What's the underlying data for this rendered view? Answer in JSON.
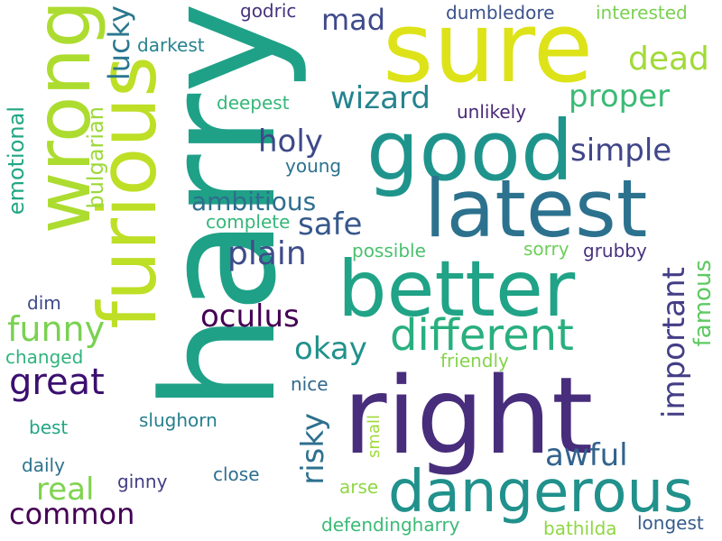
{
  "words": [
    {
      "text": "harry",
      "color": "#1fa187",
      "vertical": true
    },
    {
      "text": "sure",
      "color": "#dde318",
      "vertical": false
    },
    {
      "text": "right",
      "color": "#472d7b",
      "vertical": false
    },
    {
      "text": "furious",
      "color": "#bddf26",
      "vertical": true
    },
    {
      "text": "wrong",
      "color": "#addc30",
      "vertical": true
    },
    {
      "text": "good",
      "color": "#1f948c",
      "vertical": false
    },
    {
      "text": "latest",
      "color": "#2c728e",
      "vertical": false
    },
    {
      "text": "better",
      "color": "#20a386",
      "vertical": false
    },
    {
      "text": "dangerous",
      "color": "#21918c",
      "vertical": false
    },
    {
      "text": "different",
      "color": "#29af7f",
      "vertical": false
    },
    {
      "text": "lucky",
      "color": "#2a788e",
      "vertical": true
    },
    {
      "text": "mad",
      "color": "#3e4a89",
      "vertical": false
    },
    {
      "text": "dead",
      "color": "#a2da37",
      "vertical": false
    },
    {
      "text": "wizard",
      "color": "#25848e",
      "vertical": false
    },
    {
      "text": "proper",
      "color": "#3bbb75",
      "vertical": false
    },
    {
      "text": "holy",
      "color": "#3e4989",
      "vertical": false
    },
    {
      "text": "simple",
      "color": "#404688",
      "vertical": false
    },
    {
      "text": "emotional",
      "color": "#22a785",
      "vertical": true
    },
    {
      "text": "bulgarian",
      "color": "#9dd93b",
      "vertical": true
    },
    {
      "text": "ambitious",
      "color": "#2e6e8e",
      "vertical": false
    },
    {
      "text": "safe",
      "color": "#38588c",
      "vertical": false
    },
    {
      "text": "plain",
      "color": "#3e4c8a",
      "vertical": false
    },
    {
      "text": "oculus",
      "color": "#440154",
      "vertical": false
    },
    {
      "text": "okay",
      "color": "#21918c",
      "vertical": false
    },
    {
      "text": "funny",
      "color": "#7ad151",
      "vertical": false
    },
    {
      "text": "important",
      "color": "#433e85",
      "vertical": true
    },
    {
      "text": "famous",
      "color": "#5ec962",
      "vertical": true
    },
    {
      "text": "great",
      "color": "#3b0f70",
      "vertical": false
    },
    {
      "text": "risky",
      "color": "#2d708e",
      "vertical": true
    },
    {
      "text": "awful",
      "color": "#33638d",
      "vertical": false
    },
    {
      "text": "real",
      "color": "#7fd34e",
      "vertical": false
    },
    {
      "text": "common",
      "color": "#440154",
      "vertical": false
    },
    {
      "text": "godric",
      "color": "#46337e",
      "vertical": false
    },
    {
      "text": "dumbledore",
      "color": "#3b528b",
      "vertical": false
    },
    {
      "text": "interested",
      "color": "#7ad151",
      "vertical": false
    },
    {
      "text": "darkest",
      "color": "#26828e",
      "vertical": false
    },
    {
      "text": "deepest",
      "color": "#35b779",
      "vertical": false
    },
    {
      "text": "unlikely",
      "color": "#482878",
      "vertical": false
    },
    {
      "text": "young",
      "color": "#2c728e",
      "vertical": false
    },
    {
      "text": "complete",
      "color": "#35b779",
      "vertical": false
    },
    {
      "text": "possible",
      "color": "#4ac16d",
      "vertical": false
    },
    {
      "text": "sorry",
      "color": "#6ece58",
      "vertical": false
    },
    {
      "text": "grubby",
      "color": "#46327e",
      "vertical": false
    },
    {
      "text": "dim",
      "color": "#3e4a89",
      "vertical": false
    },
    {
      "text": "changed",
      "color": "#2fb47c",
      "vertical": false
    },
    {
      "text": "friendly",
      "color": "#84d44b",
      "vertical": false
    },
    {
      "text": "nice",
      "color": "#31688e",
      "vertical": false
    },
    {
      "text": "best",
      "color": "#21a685",
      "vertical": false
    },
    {
      "text": "slughorn",
      "color": "#277f8e",
      "vertical": false
    },
    {
      "text": "daily",
      "color": "#2c738e",
      "vertical": false
    },
    {
      "text": "small",
      "color": "#a0da39",
      "vertical": true
    },
    {
      "text": "ginny",
      "color": "#433e85",
      "vertical": false
    },
    {
      "text": "close",
      "color": "#2e6f8e",
      "vertical": false
    },
    {
      "text": "arse",
      "color": "#8fd744",
      "vertical": false
    },
    {
      "text": "defendingharry",
      "color": "#3aba76",
      "vertical": false
    },
    {
      "text": "bathilda",
      "color": "#8fd744",
      "vertical": false
    },
    {
      "text": "longest",
      "color": "#365c8d",
      "vertical": false
    }
  ]
}
